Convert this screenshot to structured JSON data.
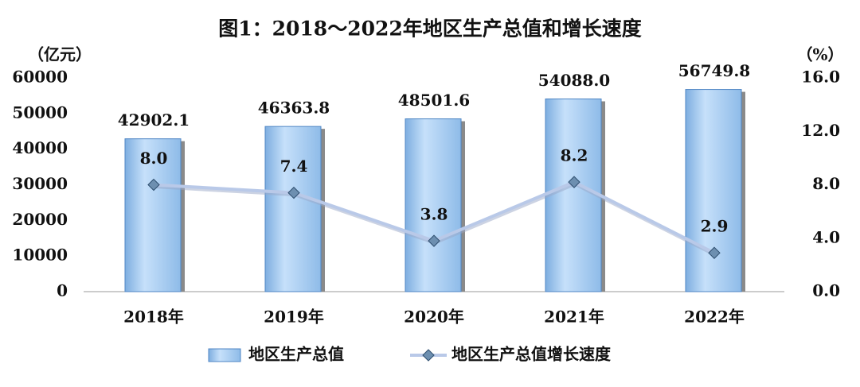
{
  "chart_data": {
    "type": "bar-line",
    "title": "图1：2018～2022年地区生产总值和增长速度",
    "y_label": "（亿元）",
    "y2_label": "（%）",
    "categories": [
      "2018年",
      "2019年",
      "2020年",
      "2021年",
      "2022年"
    ],
    "series": [
      {
        "name": "地区生产总值",
        "type": "bar",
        "color": "#a8ccf0",
        "values": [
          42902.1,
          46363.8,
          48501.6,
          54088.0,
          56749.8
        ],
        "value_labels": [
          "42902.1",
          "46363.8",
          "48501.6",
          "54088.0",
          "56749.8"
        ]
      },
      {
        "name": "地区生产总值增长速度",
        "type": "line",
        "axis": "y2",
        "color": "#b9c9e8",
        "values": [
          8.0,
          7.4,
          3.8,
          8.2,
          2.9
        ],
        "value_labels": [
          "8.0",
          "7.4",
          "3.8",
          "8.2",
          "2.9"
        ]
      }
    ],
    "ylim": [
      0,
      60000
    ],
    "yticks": [
      0,
      10000,
      20000,
      30000,
      40000,
      50000,
      60000
    ],
    "y2lim": [
      0,
      16
    ],
    "y2ticks": [
      {
        "value": 0,
        "label": "0.0"
      },
      {
        "value": 4,
        "label": "4.0"
      },
      {
        "value": 8,
        "label": "8.0"
      },
      {
        "value": 12,
        "label": "12.0"
      },
      {
        "value": 16,
        "label": "16.0"
      }
    ],
    "grid": false,
    "legend": "bottom"
  }
}
